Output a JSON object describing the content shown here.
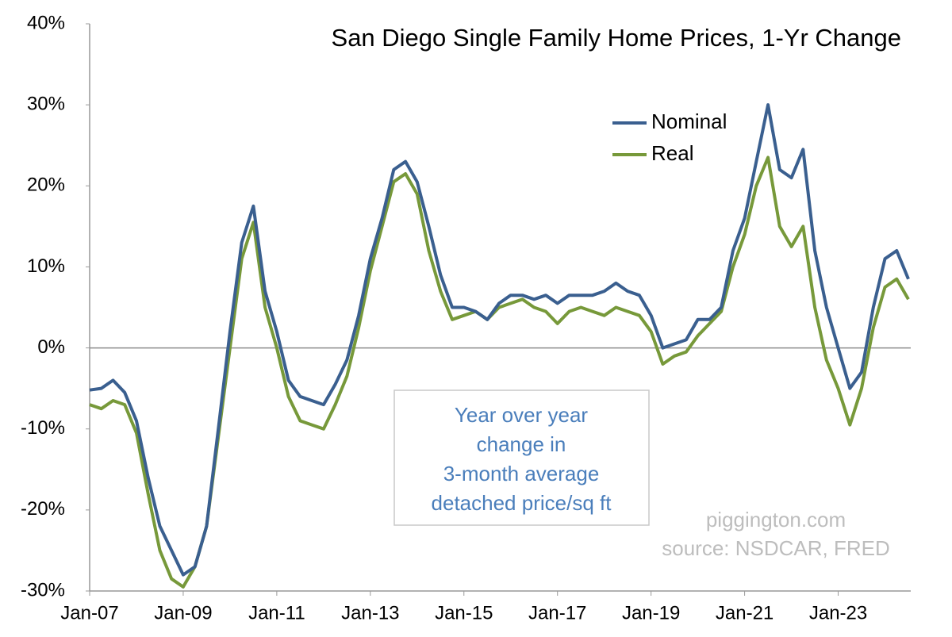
{
  "chart_data": {
    "type": "line",
    "title": "San Diego Single Family Home Prices, 1-Yr Change",
    "categories": [
      "Jan-07",
      null,
      null,
      null,
      null,
      null,
      null,
      null,
      "Jan-09",
      null,
      null,
      null,
      null,
      null,
      null,
      null,
      "Jan-11",
      null,
      null,
      null,
      null,
      null,
      null,
      null,
      "Jan-13",
      null,
      null,
      null,
      null,
      null,
      null,
      null,
      "Jan-15",
      null,
      null,
      null,
      null,
      null,
      null,
      null,
      "Jan-17",
      null,
      null,
      null,
      null,
      null,
      null,
      null,
      "Jan-19",
      null,
      null,
      null,
      null,
      null,
      null,
      null,
      "Jan-21",
      null,
      null,
      null,
      null,
      null,
      null,
      null,
      "Jan-23",
      null,
      null,
      null,
      null,
      null,
      null
    ],
    "series": [
      {
        "name": "Nominal",
        "color": "#3a5f8f",
        "values": [
          -5.2,
          -5,
          -4,
          -5.5,
          -9,
          -16,
          -22,
          -25,
          -28,
          -27,
          -22,
          -10,
          2,
          13,
          17.5,
          7,
          2,
          -4,
          -6,
          -6.5,
          -7,
          -4.5,
          -1.5,
          4,
          11,
          16,
          22,
          23,
          20.5,
          15,
          9,
          5,
          5,
          4.5,
          3.5,
          5.5,
          6.5,
          6.5,
          6,
          6.5,
          5.5,
          6.5,
          6.5,
          6.5,
          7,
          8,
          7,
          6.5,
          4,
          0,
          0.5,
          1,
          3.5,
          3.5,
          5,
          12,
          16,
          23,
          30,
          22,
          21,
          24.5,
          12,
          5,
          0,
          -5,
          -3,
          5,
          11,
          12,
          8.5
        ]
      },
      {
        "name": "Real",
        "color": "#77993a",
        "values": [
          -7,
          -7.5,
          -6.5,
          -7,
          -10.5,
          -18,
          -25,
          -28.5,
          -29.5,
          -27,
          -22,
          -11,
          0,
          11,
          15.5,
          5,
          0,
          -6,
          -9,
          -9.5,
          -10,
          -7,
          -3.5,
          2.5,
          9.5,
          15,
          20.5,
          21.5,
          19,
          12,
          7,
          3.5,
          4,
          4.5,
          3.5,
          5,
          5.5,
          6,
          5,
          4.5,
          3,
          4.5,
          5,
          4.5,
          4,
          5,
          4.5,
          4,
          2,
          -2,
          -1,
          -0.5,
          1.5,
          3,
          4.5,
          10,
          14,
          20,
          23.5,
          15,
          12.5,
          15,
          5,
          -1.5,
          -5,
          -9.5,
          -5,
          2.5,
          7.5,
          8.5,
          6
        ]
      }
    ],
    "ylim": [
      -30,
      40
    ],
    "yticks": [
      {
        "value": -30,
        "label": "-30%"
      },
      {
        "value": -20,
        "label": "-20%"
      },
      {
        "value": -10,
        "label": "-10%"
      },
      {
        "value": 0,
        "label": "0%"
      },
      {
        "value": 10,
        "label": "10%"
      },
      {
        "value": 20,
        "label": "20%"
      },
      {
        "value": 30,
        "label": "30%"
      },
      {
        "value": 40,
        "label": "40%"
      }
    ],
    "grid": false,
    "legend": "upper right",
    "annotation": [
      "Year over year",
      "change in",
      "3-month average",
      "detached price/sq ft"
    ],
    "watermark": [
      "piggington.com",
      "source: NSDCAR, FRED"
    ]
  }
}
